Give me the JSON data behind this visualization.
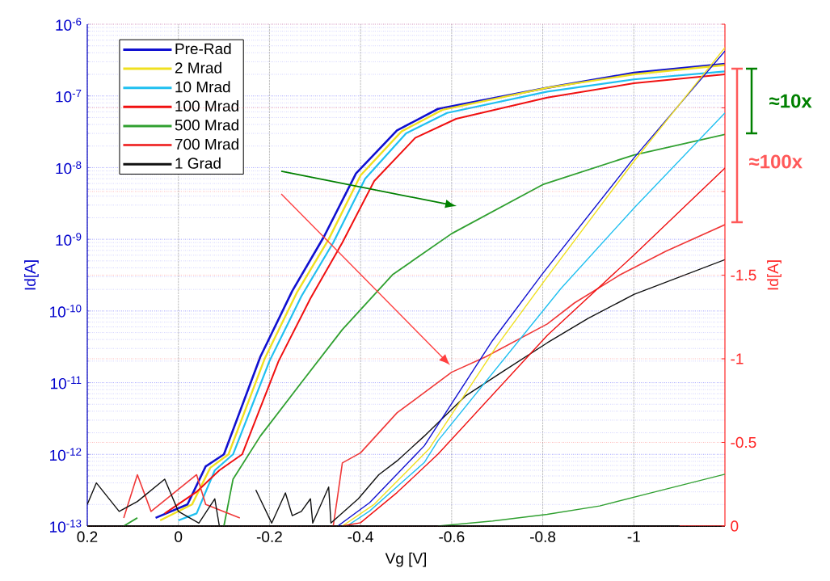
{
  "chart_data": {
    "type": "line",
    "xlabel": "Vg [V]",
    "ylabel": "Id[A]",
    "y2label": "Id[A]",
    "log": "y",
    "grid": true,
    "legend": "top left",
    "xlim": [
      0.2,
      -1.2
    ],
    "xticks": [
      0.2,
      0,
      -0.2,
      -0.4,
      -0.6,
      -0.8,
      -1
    ],
    "ylim": [
      1e-13,
      1e-06
    ],
    "yticks": [
      {
        "value": 1e-13,
        "label": "10$^{-13}$"
      },
      {
        "value": 1e-12,
        "label": "10$^{-12}$"
      },
      {
        "value": 1e-11,
        "label": "10$^{-11}$"
      },
      {
        "value": 1e-10,
        "label": "10$^{-10}$"
      },
      {
        "value": 1e-09,
        "label": "10$^{-9}$"
      },
      {
        "value": 1e-08,
        "label": "10$^{-8}$"
      },
      {
        "value": 1e-07,
        "label": "10$^{-7}$"
      },
      {
        "value": 1e-06,
        "label": "10$^{-6}$"
      }
    ],
    "y2lim": [
      0,
      -3
    ],
    "y2ticks": [
      0,
      -0.5,
      -1,
      -1.5,
      {
        "value": -2,
        "label": null
      },
      {
        "value": -2.5,
        "label": null
      },
      {
        "value": -3,
        "label": null
      }
    ],
    "series": [
      {
        "name": "Pre-Rad",
        "color": "#1010d0",
        "x": [
          0.05,
          -0.02,
          -0.06,
          -0.1,
          -0.18,
          -0.25,
          -0.32,
          -0.39,
          -0.48,
          -0.57,
          -0.81,
          -1.0,
          -1.2
        ],
        "values": [
          1.3e-13,
          2e-13,
          6.8e-13,
          1e-12,
          2.3e-11,
          1.9e-10,
          1.1e-09,
          8.3e-09,
          3.3e-08,
          6.6e-08,
          1.3e-07,
          2.1e-07,
          2.8e-07
        ]
      },
      {
        "name": "2 Mrad",
        "color": "#f0e020",
        "x": [
          0.04,
          -0.03,
          -0.07,
          -0.11,
          -0.19,
          -0.26,
          -0.33,
          -0.4,
          -0.49,
          -0.58,
          -0.81,
          -1.0,
          -1.2
        ],
        "values": [
          1.2e-13,
          2e-13,
          6.5e-13,
          1e-12,
          2.2e-11,
          1.8e-10,
          1e-09,
          7.8e-09,
          3.2e-08,
          6.4e-08,
          1.3e-07,
          2e-07,
          2.7e-07
        ]
      },
      {
        "name": "10 Mrad",
        "color": "#20c0f0",
        "x": [
          0.0,
          -0.04,
          -0.08,
          -0.12,
          -0.2,
          -0.27,
          -0.34,
          -0.41,
          -0.5,
          -0.59,
          -0.81,
          -1.0,
          -1.2
        ],
        "values": [
          1.2e-13,
          1.5e-13,
          6e-13,
          1e-12,
          2e-11,
          1.6e-10,
          9e-10,
          7e-09,
          3e-08,
          5.8e-08,
          1.15e-07,
          1.7e-07,
          2.2e-07
        ]
      },
      {
        "name": "100 Mrad",
        "color": "#f01010",
        "x": [
          0.03,
          -0.04,
          -0.09,
          -0.14,
          -0.22,
          -0.29,
          -0.36,
          -0.43,
          -0.52,
          -0.61,
          -0.81,
          -1.0,
          -1.2
        ],
        "values": [
          1.5e-13,
          3e-13,
          6e-13,
          1e-12,
          2e-11,
          1.5e-10,
          9e-10,
          6.5e-09,
          2.6e-08,
          4.8e-08,
          9.5e-08,
          1.5e-07,
          2e-07
        ]
      },
      {
        "name": "500 Mrad",
        "color": "#30a030",
        "x": [
          0.12,
          0.09,
          0.07,
          -0.1,
          -0.12,
          -0.18,
          -0.27,
          -0.36,
          -0.47,
          -0.6,
          -0.8,
          -1.0,
          -1.2
        ],
        "values": [
          1e-13,
          1.3e-13,
          null,
          1e-13,
          4.5e-13,
          1.8e-12,
          1e-11,
          5.5e-11,
          3.2e-10,
          1.2e-09,
          5.8e-09,
          1.5e-08,
          2.9e-08
        ]
      },
      {
        "name": "700 Mrad",
        "color": "#f03838",
        "x": [
          0.12,
          0.09,
          0.06,
          -0.04,
          -0.06,
          -0.135,
          -0.2,
          -0.34,
          -0.35,
          -0.36,
          -0.4,
          -0.48,
          -0.6,
          -0.675,
          -0.81,
          -0.87,
          -0.97,
          -1.07,
          -1.2
        ],
        "values": [
          1.3e-13,
          5.2e-13,
          1.6e-13,
          5.2e-13,
          2e-13,
          1.3e-13,
          null,
          1e-13,
          2.7e-13,
          7.6e-13,
          1.05e-12,
          3.8e-12,
          1.4e-11,
          2.3e-11,
          6.6e-11,
          1.3e-10,
          3.2e-10,
          6.8e-10,
          1.6e-09
        ]
      },
      {
        "name": "1 Grad",
        "color": "#101010",
        "x": [
          0.2,
          0.18,
          0.13,
          0.09,
          0.03,
          0.0,
          -0.045,
          -0.08,
          -0.09,
          -0.13,
          -0.17,
          -0.205,
          -0.235,
          -0.25,
          -0.27,
          -0.29,
          -0.295,
          -0.33,
          -0.335,
          -0.395,
          -0.44,
          -0.48,
          -0.54,
          -0.63,
          -0.71,
          -0.81,
          -0.9,
          -1.0,
          -1.2
        ],
        "values": [
          2e-13,
          4e-13,
          1.6e-13,
          2.2e-13,
          4.5e-13,
          1.6e-13,
          1.1e-13,
          2.4e-13,
          1e-13,
          null,
          3.2e-13,
          1.1e-13,
          2.9e-13,
          1.4e-13,
          1.6e-13,
          2.4e-13,
          1.1e-13,
          3.5e-13,
          1.1e-13,
          2.4e-13,
          5.2e-13,
          8.1e-13,
          1.8e-12,
          6.5e-12,
          1.4e-11,
          3.6e-11,
          7.9e-11,
          1.7e-10,
          5.2e-10
        ]
      },
      {
        "color": "#1010d0",
        "axis": "y2",
        "x": [
          -0.35,
          -0.42,
          -0.54,
          -0.69,
          -0.8,
          -1.0,
          -1.2
        ],
        "values": [
          0,
          -0.14,
          -0.48,
          -1.11,
          -1.51,
          -2.2,
          -2.84
        ]
      },
      {
        "color": "#f0e020",
        "axis": "y2",
        "x": [
          -0.36,
          -0.43,
          -0.55,
          -0.7,
          -0.81,
          -1.0,
          -1.2
        ],
        "values": [
          0,
          -0.13,
          -0.46,
          -1.08,
          -1.49,
          -2.18,
          -2.86
        ]
      },
      {
        "color": "#20c0f0",
        "axis": "y2",
        "x": [
          -0.37,
          -0.42,
          -0.54,
          -0.57,
          -0.84,
          -1.0,
          -1.2
        ],
        "values": [
          0,
          -0.09,
          -0.38,
          -0.51,
          -1.42,
          -1.9,
          -2.47
        ]
      },
      {
        "color": "#f01010",
        "axis": "y2",
        "x": [
          -0.36,
          -0.4,
          -0.48,
          -0.57,
          -0.81,
          -1.0,
          -1.2
        ],
        "values": [
          0,
          -0.02,
          -0.2,
          -0.43,
          -1.14,
          -1.62,
          -2.14
        ]
      },
      {
        "color": "#30a030",
        "axis": "y2",
        "x": [
          -0.57,
          -0.69,
          -0.81,
          -0.925,
          -1.04,
          -1.2
        ],
        "values": [
          0,
          -0.03,
          -0.07,
          -0.12,
          -0.2,
          -0.31
        ]
      },
      {
        "color": "#f03838",
        "axis": "y2",
        "x": [
          -1.1,
          -1.2
        ],
        "values": [
          0,
          0
        ]
      },
      {
        "color": "#101010",
        "axis": "y2",
        "x": [
          0.2,
          -1.1
        ],
        "values": [
          0,
          0
        ]
      }
    ],
    "annotations": [
      "≈10x",
      "≈100x"
    ]
  }
}
